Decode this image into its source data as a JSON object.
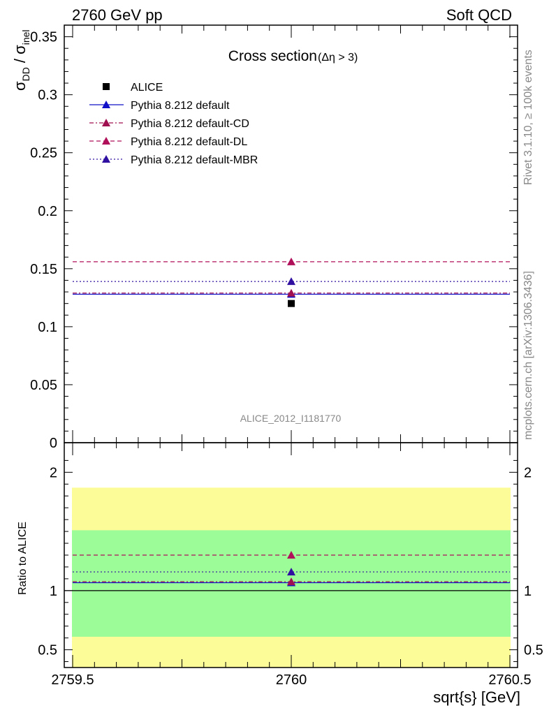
{
  "header": {
    "left": "2760 GeV pp",
    "right": "Soft QCD"
  },
  "side_labels": {
    "rivet": "Rivet 3.1.10, ≥ 100k events",
    "mcplots": "mcplots.cern.ch [arXiv:1306.3436]"
  },
  "chart_data": [
    {
      "type": "scatter",
      "title_main": "Cross section",
      "title_sub": "(Δη > 3)",
      "ylabel_main": "σ",
      "ylabel_sub1": "DD",
      "ylabel_mid": " / σ",
      "ylabel_sub2": "inel",
      "xlim": [
        2759.5,
        2760.5
      ],
      "ylim": [
        0,
        0.36
      ],
      "yticks": [
        0,
        0.05,
        0.1,
        0.15,
        0.2,
        0.25,
        0.3,
        0.35
      ],
      "ytick_labels": [
        "0",
        "0.05",
        "0.1",
        "0.15",
        "0.2",
        "0.25",
        "0.3",
        "0.35"
      ],
      "watermark": "ALICE_2012_I1181770",
      "series": [
        {
          "name": "ALICE",
          "marker": "square",
          "color": "#000000",
          "x": 2760,
          "y": 0.12
        },
        {
          "name": "Pythia 8.212 default",
          "marker": "triangle",
          "line": "solid",
          "color": "#1010c8",
          "y": 0.128
        },
        {
          "name": "Pythia 8.212 default-CD",
          "marker": "triangle",
          "line": "dashdot",
          "color": "#a01050",
          "y": 0.129
        },
        {
          "name": "Pythia 8.212 default-DL",
          "marker": "triangle",
          "line": "dashed",
          "color": "#b0105a",
          "y": 0.156
        },
        {
          "name": "Pythia 8.212 default-MBR",
          "marker": "triangle",
          "line": "dotted",
          "color": "#3010a0",
          "y": 0.139
        }
      ]
    },
    {
      "type": "scatter",
      "ylabel": "Ratio to ALICE",
      "xlabel": "sqrt{s} [GeV]",
      "xlim": [
        2759.5,
        2760.5
      ],
      "xticks": [
        2759.5,
        2760,
        2760.5
      ],
      "xtick_labels": [
        "2759.5",
        "2760",
        "2760.5"
      ],
      "ylim": [
        0.35,
        2.25
      ],
      "yticks": [
        0.5,
        1,
        2
      ],
      "ytick_labels": [
        "0.5",
        "1",
        "2"
      ],
      "band_1sigma": [
        0.61,
        1.51
      ],
      "band_2sigma": [
        0.35,
        1.87
      ],
      "colors": {
        "band_1sigma": "#9cfc98",
        "band_2sigma": "#fcfc98"
      },
      "series": [
        {
          "name": "Pythia 8.212 default",
          "y": 1.067,
          "color": "#1010c8",
          "line": "solid"
        },
        {
          "name": "Pythia 8.212 default-CD",
          "y": 1.075,
          "color": "#a01050",
          "line": "dashdot"
        },
        {
          "name": "Pythia 8.212 default-DL",
          "y": 1.3,
          "color": "#b0105a",
          "line": "dashed"
        },
        {
          "name": "Pythia 8.212 default-MBR",
          "y": 1.158,
          "color": "#3010a0",
          "line": "dotted"
        }
      ]
    }
  ]
}
